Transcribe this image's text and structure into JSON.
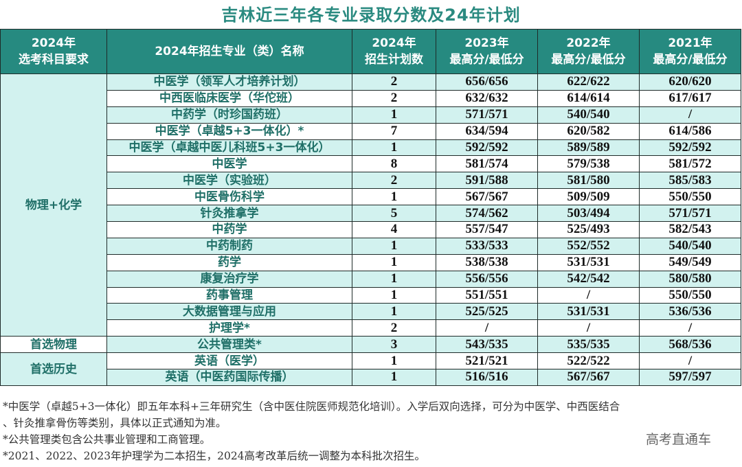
{
  "title": "吉林近三年各专业录取分数及24年计划",
  "header": {
    "req": [
      "2024年",
      "选考科目要求"
    ],
    "major": "2024年招生专业（类）名称",
    "plan": [
      "2024年",
      "招生计划数"
    ],
    "y2023": [
      "2023年",
      "最高分/最低分"
    ],
    "y2022": [
      "2022年",
      "最高分/最低分"
    ],
    "y2021": [
      "2021年",
      "最高分/最低分"
    ]
  },
  "groups": [
    {
      "requirement": "物理+化学",
      "rows": 16
    },
    {
      "requirement": "首选物理",
      "rows": 1
    },
    {
      "requirement": "首选历史",
      "rows": 2
    }
  ],
  "rows": [
    {
      "major": "中医学（领军人才培养计划）",
      "plan": "2",
      "y2023": "656/656",
      "y2022": "622/622",
      "y2021": "620/620"
    },
    {
      "major": "中西医临床医学（华佗班）",
      "plan": "2",
      "y2023": "632/632",
      "y2022": "614/614",
      "y2021": "617/617"
    },
    {
      "major": "中药学（时珍国药班）",
      "plan": "1",
      "y2023": "571/571",
      "y2022": "540/540",
      "y2021": "/"
    },
    {
      "major": "中医学（卓越5+3一体化）*",
      "plan": "7",
      "y2023": "634/594",
      "y2022": "620/582",
      "y2021": "614/586"
    },
    {
      "major": "中医学（卓越中医儿科班5+3一体化）",
      "plan": "1",
      "y2023": "592/592",
      "y2022": "589/589",
      "y2021": "592/592"
    },
    {
      "major": "中医学",
      "plan": "8",
      "y2023": "581/574",
      "y2022": "579/538",
      "y2021": "581/572"
    },
    {
      "major": "中医学（实验班）",
      "plan": "2",
      "y2023": "591/588",
      "y2022": "581/580",
      "y2021": "585/583"
    },
    {
      "major": "中医骨伤科学",
      "plan": "1",
      "y2023": "567/567",
      "y2022": "509/509",
      "y2021": "550/550"
    },
    {
      "major": "针灸推拿学",
      "plan": "5",
      "y2023": "574/562",
      "y2022": "503/494",
      "y2021": "571/571"
    },
    {
      "major": "中药学",
      "plan": "4",
      "y2023": "557/547",
      "y2022": "525/493",
      "y2021": "582/543"
    },
    {
      "major": "中药制药",
      "plan": "1",
      "y2023": "533/533",
      "y2022": "552/552",
      "y2021": "540/540"
    },
    {
      "major": "药学",
      "plan": "1",
      "y2023": "538/538",
      "y2022": "531/531",
      "y2021": "549/549"
    },
    {
      "major": "康复治疗学",
      "plan": "1",
      "y2023": "556/556",
      "y2022": "542/542",
      "y2021": "580/580"
    },
    {
      "major": "药事管理",
      "plan": "1",
      "y2023": "551/551",
      "y2022": "/",
      "y2021": "550/550"
    },
    {
      "major": "大数据管理与应用",
      "plan": "1",
      "y2023": "525/525",
      "y2022": "531/531",
      "y2021": "536/536"
    },
    {
      "major": "护理学*",
      "plan": "2",
      "y2023": "/",
      "y2022": "/",
      "y2021": "/"
    },
    {
      "major": "公共管理类*",
      "plan": "3",
      "y2023": "543/535",
      "y2022": "535/535",
      "y2021": "568/536"
    },
    {
      "major": "英语（医学）",
      "plan": "1",
      "y2023": "521/521",
      "y2022": "522/522",
      "y2021": "/"
    },
    {
      "major": "英语（中医药国际传播）",
      "plan": "1",
      "y2023": "516/516",
      "y2022": "567/567",
      "y2021": "597/597"
    }
  ],
  "notes": [
    "*中医学（卓越5+3一体化）即五年本科+三年研究生（含中医住院医师规范化培训）。入学后双向选择，可分为中医学、中西医结合",
    "、针灸推拿骨伤等类别，具体以正式通知为准。",
    "*公共管理类包含公共事业管理和工商管理。",
    "*2021、2022、2023年护理学为二本招生，2024高考改革后统一调整为本科批次招生。"
  ],
  "watermark": "高考直通车",
  "colors": {
    "header_bg": "#268a80",
    "title": "#2a8a80",
    "row_alt": "#d2f2ef",
    "major_text": "#1f6f67"
  }
}
